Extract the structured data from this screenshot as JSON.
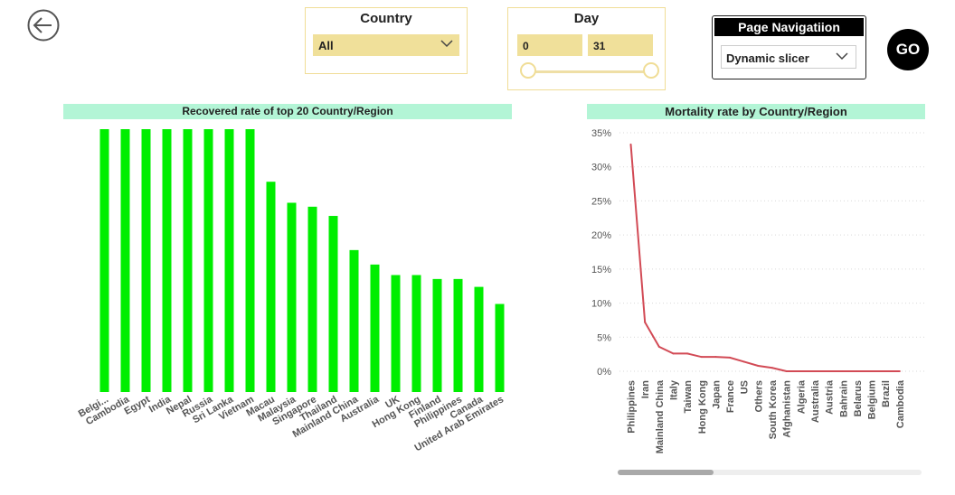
{
  "colors": {
    "accent": "#f0e09a",
    "title_band": "#b3f5d6",
    "bar": "#00ee00",
    "line": "#d24a55"
  },
  "navigation": {
    "back_icon": "back-arrow-icon"
  },
  "country_slicer": {
    "title": "Country",
    "selected": "All",
    "icon": "chevron-down-icon"
  },
  "day_slicer": {
    "title": "Day",
    "min": "0",
    "max": "31"
  },
  "page_navigation": {
    "title": "Page Navigatiion",
    "selected": "Dynamic slicer",
    "go_label": "GO"
  },
  "chart_data": [
    {
      "type": "bar",
      "title": "Recovered rate of top 20 Country/Region",
      "xlabel": "",
      "ylabel": "",
      "categories": [
        "Belgi...",
        "Cambodia",
        "Egypt",
        "India",
        "Nepal",
        "Russia",
        "Sri Lanka",
        "Vietnam",
        "Macau",
        "Malaysia",
        "Singapore",
        "Thailand",
        "Mainland China",
        "Australia",
        "UK",
        "Hong Kong",
        "Finland",
        "Philippines",
        "Canada",
        "United Arab Emirates"
      ],
      "values": [
        100,
        100,
        100,
        100,
        100,
        100,
        100,
        100,
        80,
        72,
        70.5,
        67,
        54,
        48.5,
        44.5,
        44.5,
        43,
        43,
        40,
        33.5
      ],
      "ylim": [
        0,
        100
      ],
      "axis_visible": false
    },
    {
      "type": "line",
      "title": "Mortality rate by Country/Region",
      "xlabel": "",
      "ylabel": "",
      "categories": [
        "Philippines",
        "Iran",
        "Mainland China",
        "Italy",
        "Taiwan",
        "Hong Kong",
        "Japan",
        "France",
        "US",
        "Others",
        "South Korea",
        "Afghanistan",
        "Algeria",
        "Australia",
        "Austria",
        "Bahrain",
        "Belarus",
        "Belgium",
        "Brazil",
        "Cambodia"
      ],
      "values": [
        33.3,
        7.2,
        3.6,
        2.6,
        2.6,
        2.1,
        2.1,
        2.0,
        1.4,
        0.8,
        0.5,
        0,
        0,
        0,
        0,
        0,
        0,
        0,
        0,
        0
      ],
      "ylim": [
        0,
        35
      ],
      "yticks": [
        "0%",
        "5%",
        "10%",
        "15%",
        "20%",
        "25%",
        "30%",
        "35%"
      ],
      "grid": true
    }
  ]
}
